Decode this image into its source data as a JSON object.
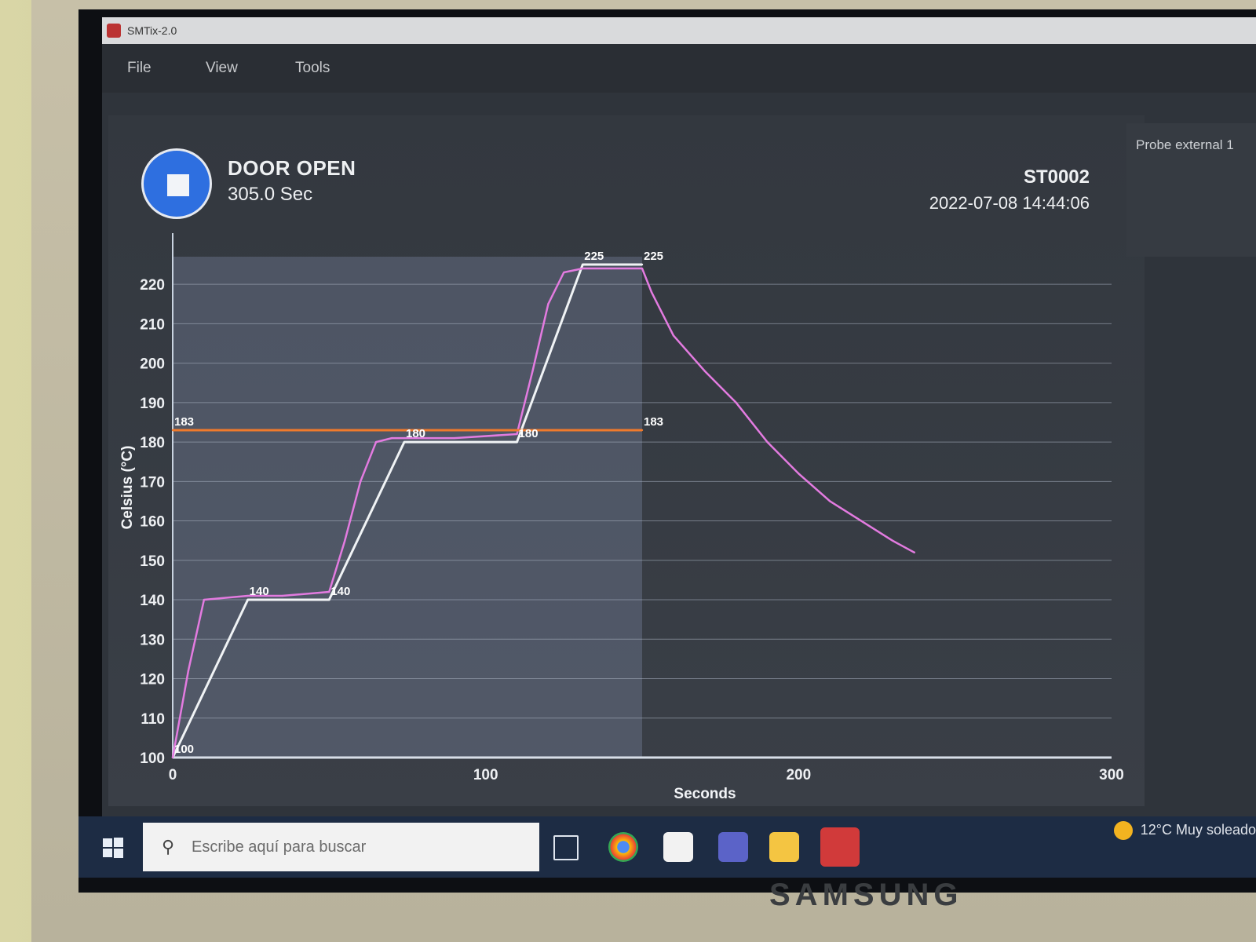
{
  "window": {
    "title": "SMTix-2.0"
  },
  "menu": {
    "items": [
      "File",
      "View",
      "Tools"
    ]
  },
  "status": {
    "state": "DOOR OPEN",
    "elapsed": "305.0 Sec"
  },
  "station": {
    "id": "ST0002",
    "timestamp": "2022-07-08 14:44:06"
  },
  "side_panel": {
    "label": "Probe external 1"
  },
  "taskbar": {
    "search_placeholder": "Escribe aquí para buscar",
    "weather": "12°C  Muy soleado",
    "icons": [
      "task-view-icon",
      "chrome-icon",
      "store-icon",
      "teams-icon",
      "file-explorer-icon",
      "smtix-app-icon"
    ]
  },
  "monitor": {
    "brand": "SAMSUNG"
  },
  "colors": {
    "measured": "#e37be0",
    "setpoint": "#f0f3f5",
    "limit": "#f07a2c",
    "accent": "#2e6fe0"
  },
  "chart_data": {
    "type": "line",
    "xlabel": "Seconds",
    "ylabel": "Celsius (°C)",
    "xlim": [
      0,
      300
    ],
    "ylim": [
      100,
      225
    ],
    "x_ticks": [
      "0",
      "100",
      "200",
      "300"
    ],
    "y_ticks": [
      "100",
      "110",
      "120",
      "130",
      "140",
      "150",
      "160",
      "170",
      "180",
      "190",
      "200",
      "210",
      "220"
    ],
    "grid": true,
    "series": [
      {
        "role": "setpoint",
        "x": [
          0,
          24,
          50,
          74,
          110,
          131,
          150
        ],
        "y": [
          100,
          140,
          140,
          180,
          180,
          225,
          225
        ]
      },
      {
        "role": "measured",
        "x": [
          0,
          5,
          10,
          24,
          35,
          50,
          55,
          60,
          65,
          70,
          74,
          90,
          110,
          115,
          120,
          125,
          131,
          140,
          150,
          153,
          160,
          170,
          180,
          190,
          200,
          210,
          220,
          230,
          237
        ],
        "y": [
          100,
          122,
          140,
          141,
          141,
          142,
          155,
          170,
          180,
          181,
          181,
          181,
          182,
          198,
          215,
          223,
          224,
          224,
          224,
          218,
          207,
          198,
          190,
          180,
          172,
          165,
          160,
          155,
          152
        ]
      },
      {
        "role": "limit",
        "x": [
          0,
          150
        ],
        "y": [
          183,
          183
        ]
      }
    ],
    "annotations": [
      {
        "text": "100",
        "x": 0,
        "y": 100
      },
      {
        "text": "140",
        "x": 24,
        "y": 140
      },
      {
        "text": "140",
        "x": 50,
        "y": 140
      },
      {
        "text": "180",
        "x": 74,
        "y": 180
      },
      {
        "text": "180",
        "x": 110,
        "y": 180
      },
      {
        "text": "225",
        "x": 131,
        "y": 225
      },
      {
        "text": "225",
        "x": 150,
        "y": 225
      },
      {
        "text": "183",
        "x": 0,
        "y": 183
      },
      {
        "text": "183",
        "x": 150,
        "y": 183
      }
    ]
  }
}
